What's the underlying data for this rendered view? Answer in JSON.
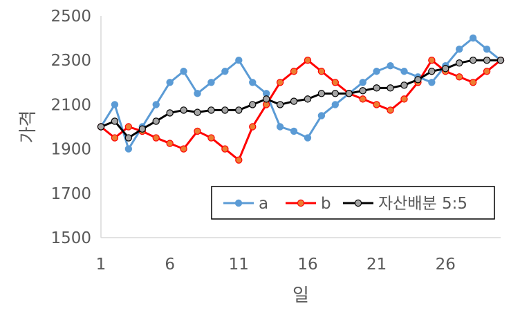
{
  "chart_data": {
    "type": "line",
    "title": "",
    "xlabel": "일",
    "ylabel": "가격",
    "x": [
      1,
      2,
      3,
      4,
      5,
      6,
      7,
      8,
      9,
      10,
      11,
      12,
      13,
      14,
      15,
      16,
      17,
      18,
      19,
      20,
      21,
      22,
      23,
      24,
      25,
      26,
      27,
      28,
      29,
      30
    ],
    "x_tick_labels": [
      "1",
      "6",
      "11",
      "16",
      "21",
      "26"
    ],
    "x_tick_positions": [
      1,
      6,
      11,
      16,
      21,
      26
    ],
    "xlim": [
      1,
      30
    ],
    "y_tick_labels": [
      "1500",
      "1700",
      "1900",
      "2100",
      "2300",
      "2500"
    ],
    "y_tick_values": [
      1500,
      1700,
      1900,
      2100,
      2300,
      2500
    ],
    "ylim": [
      1500,
      2500
    ],
    "grid": false,
    "legend_position": "bottom-right",
    "series": [
      {
        "name": "a",
        "color": "#5B9BD5",
        "marker_fill": "#5B9BD5",
        "marker_stroke": "#5B9BD5",
        "values": [
          2000,
          2100,
          1900,
          2000,
          2100,
          2200,
          2250,
          2150,
          2200,
          2250,
          2300,
          2200,
          2150,
          2000,
          1980,
          1950,
          2050,
          2100,
          2150,
          2200,
          2250,
          2275,
          2250,
          2225,
          2200,
          2275,
          2350,
          2400,
          2350,
          2300
        ]
      },
      {
        "name": "b",
        "color": "#FF0000",
        "marker_fill": "#ED7D31",
        "marker_stroke": "#FF0000",
        "values": [
          2000,
          1950,
          2000,
          1980,
          1950,
          1925,
          1900,
          1980,
          1950,
          1900,
          1850,
          2000,
          2100,
          2200,
          2250,
          2300,
          2250,
          2200,
          2150,
          2125,
          2100,
          2075,
          2125,
          2200,
          2300,
          2250,
          2225,
          2200,
          2250,
          2300
        ]
      },
      {
        "name": "자산배분 5:5",
        "color": "#000000",
        "marker_fill": "#A5A5A5",
        "marker_stroke": "#000000",
        "values": [
          2000,
          2025,
          1950,
          1990,
          2025,
          2062.5,
          2075,
          2065,
          2075,
          2075,
          2075,
          2100,
          2125,
          2100,
          2115,
          2125,
          2150,
          2150,
          2150,
          2162.5,
          2175,
          2175,
          2187.5,
          2212.5,
          2250,
          2262.5,
          2287.5,
          2300,
          2300,
          2300
        ]
      }
    ]
  }
}
